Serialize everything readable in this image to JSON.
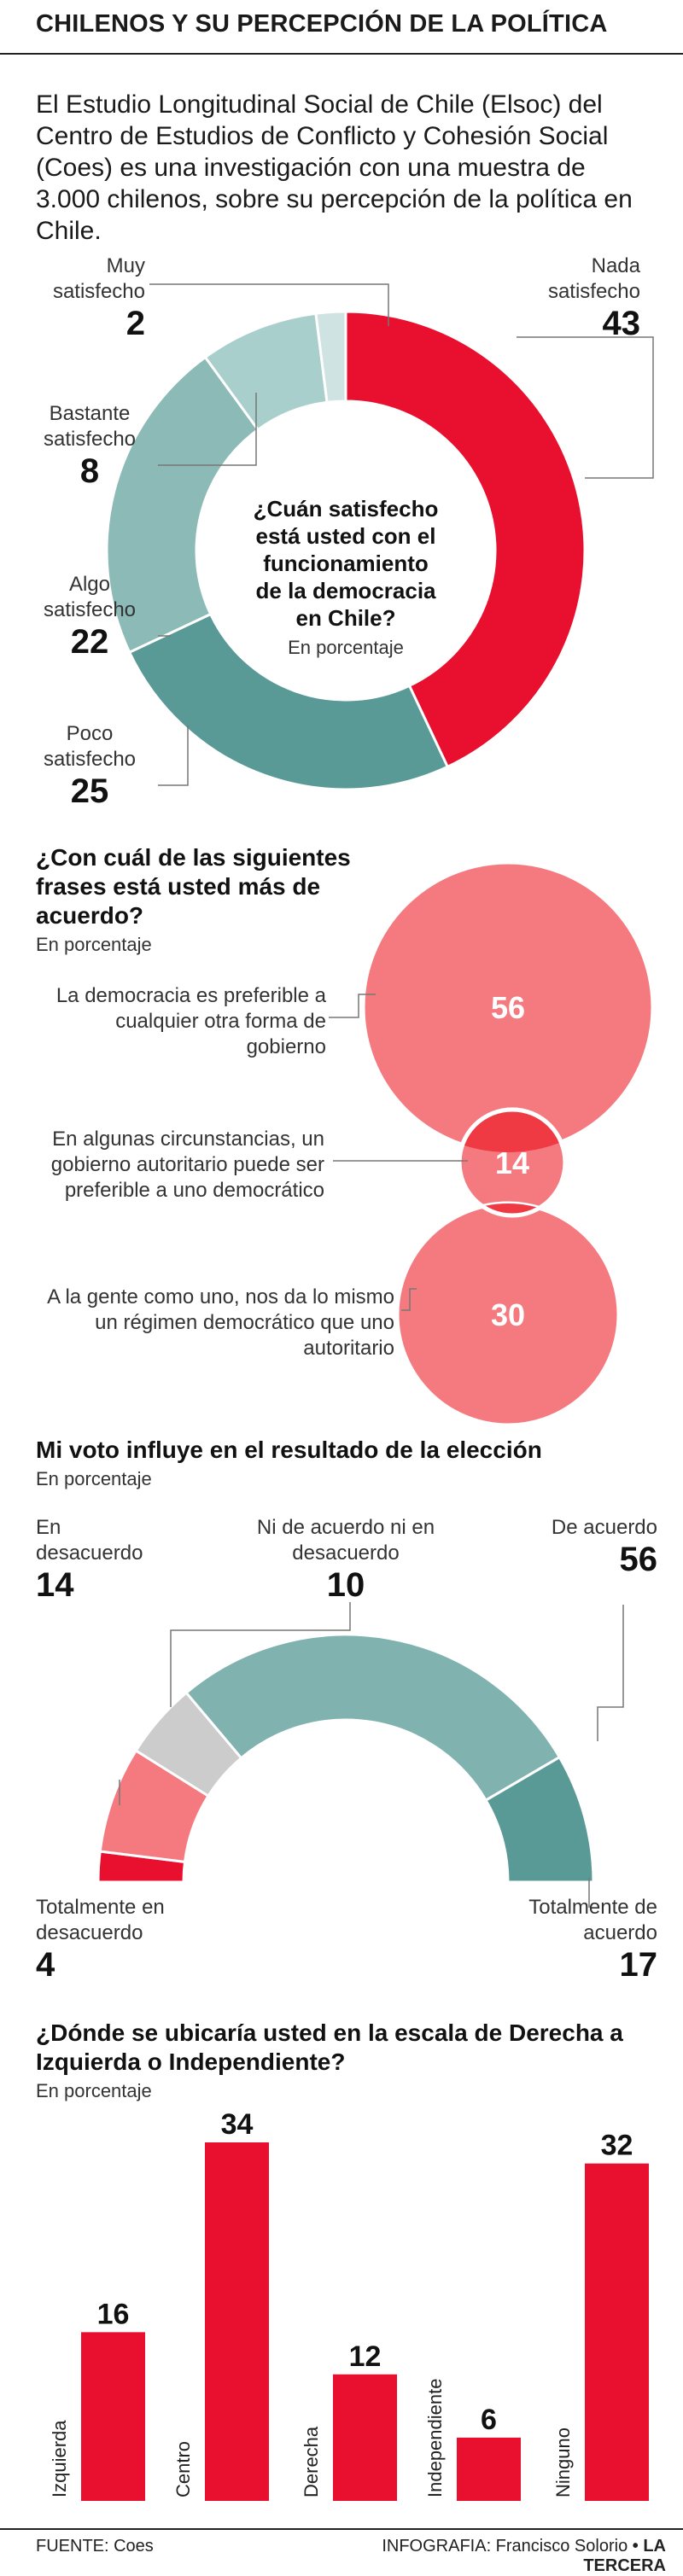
{
  "header": {
    "title": "CHILENOS Y SU PERCEPCIÓN DE LA POLÍTICA",
    "intro": "El Estudio Longitudinal Social de Chile (Elsoc) del Centro de Estudios de Conflicto y Cohesión Social (Coes) es una investigación con una muestra de 3.000 chilenos, sobre su percepción de la política en Chile."
  },
  "chart_data": [
    {
      "type": "pie",
      "title": "¿Cuán satisfecho está usted con el funcionamiento de la democracia en Chile?",
      "subtitle": "En porcentaje",
      "labels": [
        "Nada satisfecho",
        "Poco satisfecho",
        "Algo satisfecho",
        "Bastante satisfecho",
        "Muy satisfecho"
      ],
      "values": [
        43,
        25,
        22,
        8,
        2
      ],
      "colors": [
        "#e8102e",
        "#5a9a96",
        "#8cbab7",
        "#a9cfcd",
        "#cfe3e2"
      ]
    },
    {
      "type": "bubble",
      "title": "¿Con cuál de las siguientes frases está usted más de acuerdo?",
      "subtitle": "En porcentaje",
      "labels": [
        "La democracia es preferible a cualquier otra forma de gobierno",
        "En algunas circunstancias, un gobierno autoritario puede ser preferible a uno democrático",
        "A la gente como uno, nos da lo mismo un régimen democrático que uno autoritario"
      ],
      "values": [
        56,
        14,
        30
      ],
      "colors": [
        "#f47a80",
        "#f47a80",
        "#f47a80"
      ]
    },
    {
      "type": "semicircle",
      "title": "Mi voto influye en el resultado de la elección",
      "subtitle": "En porcentaje",
      "labels": [
        "Totalmente en desacuerdo",
        "En desacuerdo",
        "Ni de acuerdo ni en desacuerdo",
        "De acuerdo",
        "Totalmente de acuerdo"
      ],
      "values": [
        4,
        14,
        10,
        56,
        17
      ],
      "colors": [
        "#e8102e",
        "#f47a80",
        "#cccccc",
        "#80b3b0",
        "#5a9a96"
      ]
    },
    {
      "type": "bar",
      "title": "¿Dónde se ubicaría usted en la escala de Derecha a Izquierda o Independiente?",
      "subtitle": "En porcentaje",
      "categories": [
        "Izquierda",
        "Centro",
        "Derecha",
        "Independiente",
        "Ninguno"
      ],
      "values": [
        16,
        34,
        12,
        6,
        32
      ],
      "color": "#e8102e"
    }
  ],
  "footer": {
    "source": "FUENTE: Coes",
    "credit_prefix": "INFOGRAFIA: Francisco Solorio",
    "bullet": "•",
    "brand": "LA TERCERA"
  }
}
